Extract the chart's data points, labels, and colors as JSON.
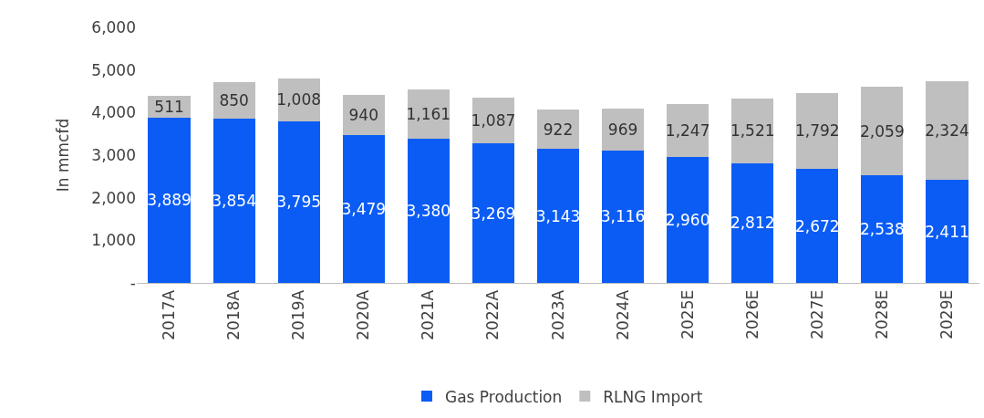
{
  "chart_data": {
    "type": "bar",
    "stacked": true,
    "ylabel": "In mmcfd",
    "categories": [
      "2017A",
      "2018A",
      "2019A",
      "2020A",
      "2021A",
      "2022A",
      "2023A",
      "2024A",
      "2025E",
      "2026E",
      "2027E",
      "2028E",
      "2029E"
    ],
    "series": [
      {
        "name": "Gas Production",
        "color": "#0a5cf5",
        "values": [
          3889,
          3854,
          3795,
          3479,
          3380,
          3269,
          3143,
          3116,
          2960,
          2812,
          2672,
          2538,
          2411
        ],
        "value_labels": [
          "3,889",
          "3,854",
          "3,795",
          "3,479",
          "3,380",
          "3,269",
          "3,143",
          "3,116",
          "2,960",
          "2,812",
          "2,672",
          "2,538",
          "2,411"
        ]
      },
      {
        "name": "RLNG Import",
        "color": "#bfbfbf",
        "values": [
          511,
          850,
          1008,
          940,
          1161,
          1087,
          922,
          969,
          1247,
          1521,
          1792,
          2059,
          2324
        ],
        "value_labels": [
          "511",
          "850",
          "1,008",
          "940",
          "1,161",
          "1,087",
          "922",
          "969",
          "1,247",
          "1,521",
          "1,792",
          "2,059",
          "2,324"
        ]
      }
    ],
    "ylim": [
      0,
      6000
    ],
    "yticks": [
      {
        "value": 0,
        "label": "-"
      },
      {
        "value": 1000,
        "label": "1,000"
      },
      {
        "value": 2000,
        "label": "2,000"
      },
      {
        "value": 3000,
        "label": "3,000"
      },
      {
        "value": 4000,
        "label": "4,000"
      },
      {
        "value": 5000,
        "label": "5,000"
      },
      {
        "value": 6000,
        "label": "6,000"
      }
    ],
    "grid": false,
    "legend": "bottom"
  }
}
